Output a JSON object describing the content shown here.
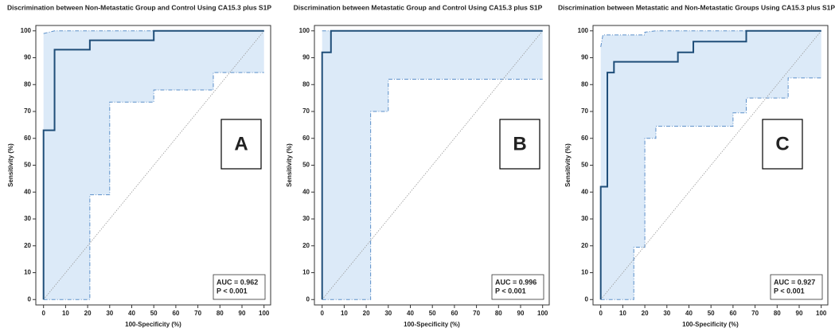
{
  "chart_data": [
    {
      "type": "roc",
      "title": "Discrimination between Non-Metastatic Group and Control Using CA15.3 plus S1P",
      "xlabel": "100-Specificity (%)",
      "ylabel": "Sensitivity (%)",
      "panel_label": "A",
      "annotations": [
        "AUC = 0.962",
        "P < 0.001"
      ],
      "xlim": [
        -3.5,
        103
      ],
      "ylim": [
        -2,
        102
      ],
      "xticks": [
        0,
        10,
        20,
        30,
        40,
        50,
        60,
        70,
        80,
        90,
        100
      ],
      "yticks": [
        0,
        10,
        20,
        30,
        40,
        50,
        60,
        70,
        80,
        90,
        100
      ],
      "band_color": "#dceaf8",
      "series": [
        {
          "role": "upper",
          "color": "#5b8fc9",
          "x": [
            0,
            5,
            100
          ],
          "values": [
            99,
            100,
            100
          ]
        },
        {
          "role": "lower",
          "color": "#5b8fc9",
          "x": [
            0,
            21,
            21,
            30,
            30,
            50,
            50,
            77,
            77,
            100
          ],
          "values": [
            0,
            0,
            39,
            39,
            73.5,
            73.5,
            78,
            78,
            84.5,
            84.5
          ]
        },
        {
          "role": "reference",
          "color": "#9a9a9a",
          "x": [
            0,
            100
          ],
          "values": [
            0,
            100
          ]
        },
        {
          "role": "roc",
          "color": "#1f4e79",
          "x": [
            0,
            0,
            5,
            5,
            21,
            21,
            50,
            50,
            100
          ],
          "values": [
            0,
            63,
            63,
            93,
            93,
            96.5,
            96.5,
            100,
            100
          ]
        }
      ]
    },
    {
      "type": "roc",
      "title": "Discrimination between Metastatic Group and Control Using CA15.3 plus S1P",
      "xlabel": "100-Specificity (%)",
      "ylabel": "Sensitivity (%)",
      "panel_label": "B",
      "annotations": [
        "AUC = 0.996",
        "P < 0.001"
      ],
      "xlim": [
        -3.5,
        103
      ],
      "ylim": [
        -2,
        102
      ],
      "xticks": [
        0,
        10,
        20,
        30,
        40,
        50,
        60,
        70,
        80,
        90,
        100
      ],
      "yticks": [
        0,
        10,
        20,
        30,
        40,
        50,
        60,
        70,
        80,
        90,
        100
      ],
      "band_color": "#dceaf8",
      "series": [
        {
          "role": "upper",
          "color": "#5b8fc9",
          "x": [
            0,
            100
          ],
          "values": [
            100,
            100
          ]
        },
        {
          "role": "lower",
          "color": "#5b8fc9",
          "x": [
            0,
            22,
            22,
            30,
            30,
            100
          ],
          "values": [
            0,
            0,
            70,
            70,
            82,
            82
          ]
        },
        {
          "role": "reference",
          "color": "#9a9a9a",
          "x": [
            0,
            100
          ],
          "values": [
            0,
            100
          ]
        },
        {
          "role": "roc",
          "color": "#1f4e79",
          "x": [
            0,
            0,
            4,
            4,
            100
          ],
          "values": [
            0,
            92,
            92,
            100,
            100
          ]
        }
      ]
    },
    {
      "type": "roc",
      "title": "Discrimination between Metastatic and Non-Metastatic Groups Using CA15.3 plus S1P",
      "xlabel": "100-Specificity (%)",
      "ylabel": "Sensitivity (%)",
      "panel_label": "C",
      "annotations": [
        "AUC = 0.927",
        "P < 0.001"
      ],
      "xlim": [
        -3.5,
        103
      ],
      "ylim": [
        -2,
        102
      ],
      "xticks": [
        0,
        10,
        20,
        30,
        40,
        50,
        60,
        70,
        80,
        90,
        100
      ],
      "yticks": [
        0,
        10,
        20,
        30,
        40,
        50,
        60,
        70,
        80,
        90,
        100
      ],
      "band_color": "#dceaf8",
      "series": [
        {
          "role": "upper",
          "color": "#5b8fc9",
          "x": [
            0,
            1,
            20,
            20,
            25,
            100
          ],
          "values": [
            94,
            98.5,
            98.5,
            99.5,
            100,
            100
          ]
        },
        {
          "role": "lower",
          "color": "#5b8fc9",
          "x": [
            0,
            15,
            15,
            20,
            20,
            25,
            25,
            60,
            60,
            66,
            66,
            85,
            85,
            100
          ],
          "values": [
            0,
            0,
            19.5,
            19.5,
            60,
            60,
            64.5,
            64.5,
            69.5,
            69.5,
            75,
            75,
            82.5,
            82.5
          ]
        },
        {
          "role": "reference",
          "color": "#9a9a9a",
          "x": [
            0,
            100
          ],
          "values": [
            0,
            100
          ]
        },
        {
          "role": "roc",
          "color": "#1f4e79",
          "x": [
            0,
            0,
            3,
            3,
            6,
            6,
            35,
            35,
            42,
            42,
            66,
            66,
            100
          ],
          "values": [
            0,
            42,
            42,
            84.5,
            84.5,
            88.5,
            88.5,
            92,
            92,
            96,
            96,
            100,
            100
          ]
        }
      ]
    }
  ]
}
